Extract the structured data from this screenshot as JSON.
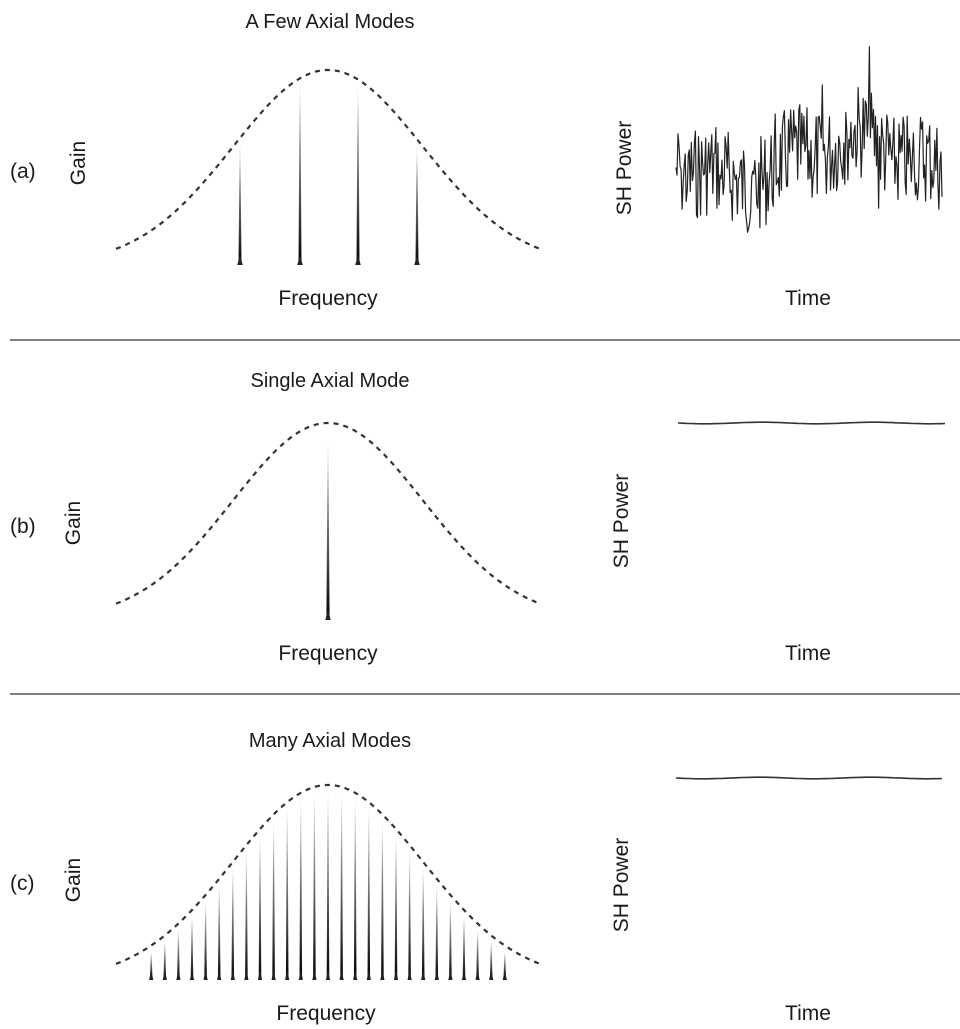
{
  "panels": [
    {
      "label": "(a)",
      "title": "A Few Axial Modes",
      "gain_label": "Gain",
      "frequency_label": "Frequency",
      "power_label": "SH Power",
      "time_label": "Time",
      "mode_count": 4,
      "power_trace": "fluctuating"
    },
    {
      "label": "(b)",
      "title": "Single Axial Mode",
      "gain_label": "Gain",
      "frequency_label": "Frequency",
      "power_label": "SH Power",
      "time_label": "Time",
      "mode_count": 1,
      "power_trace": "constant"
    },
    {
      "label": "(c)",
      "title": "Many Axial Modes",
      "gain_label": "Gain",
      "frequency_label": "Frequency",
      "power_label": "SH Power",
      "time_label": "Time",
      "mode_count": 27,
      "power_trace": "constant"
    }
  ]
}
